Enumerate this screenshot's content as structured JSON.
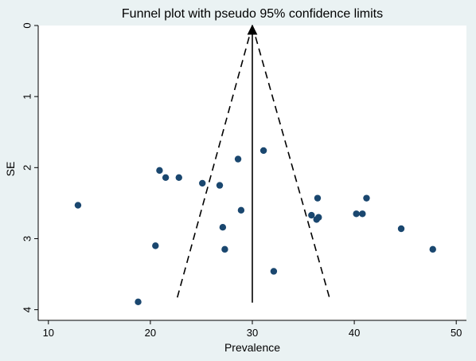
{
  "chart_data": {
    "type": "scatter",
    "title": "Funnel plot with pseudo 95% confidence limits",
    "xlabel": "Prevalence",
    "ylabel": "SE",
    "xlim": [
      9,
      51
    ],
    "ylim": [
      0,
      4.15
    ],
    "y_reversed": true,
    "xticks": [
      10,
      20,
      30,
      40,
      50
    ],
    "yticks": [
      0,
      1,
      2,
      3,
      4
    ],
    "grid": false,
    "legend": "none",
    "pooled_estimate": 30,
    "funnel_lines": [
      {
        "style": "dashed",
        "points": [
          [
            30,
            0
          ],
          [
            22.6,
            3.85
          ]
        ]
      },
      {
        "style": "dashed",
        "points": [
          [
            30,
            0
          ],
          [
            37.6,
            3.85
          ]
        ]
      },
      {
        "style": "solid-arrow",
        "points": [
          [
            30,
            3.9
          ],
          [
            30,
            0
          ]
        ]
      }
    ],
    "points": [
      {
        "x": 12.9,
        "y": 2.53
      },
      {
        "x": 18.8,
        "y": 3.89
      },
      {
        "x": 20.5,
        "y": 3.1
      },
      {
        "x": 20.9,
        "y": 2.04
      },
      {
        "x": 21.5,
        "y": 2.14
      },
      {
        "x": 22.8,
        "y": 2.14
      },
      {
        "x": 25.1,
        "y": 2.22
      },
      {
        "x": 26.8,
        "y": 2.25
      },
      {
        "x": 27.1,
        "y": 2.84
      },
      {
        "x": 27.3,
        "y": 3.15
      },
      {
        "x": 28.6,
        "y": 1.88
      },
      {
        "x": 28.9,
        "y": 2.6
      },
      {
        "x": 31.1,
        "y": 1.76
      },
      {
        "x": 32.1,
        "y": 3.46
      },
      {
        "x": 35.8,
        "y": 2.67
      },
      {
        "x": 36.3,
        "y": 2.73
      },
      {
        "x": 36.4,
        "y": 2.43
      },
      {
        "x": 36.5,
        "y": 2.7
      },
      {
        "x": 40.2,
        "y": 2.65
      },
      {
        "x": 40.8,
        "y": 2.65
      },
      {
        "x": 41.2,
        "y": 2.43
      },
      {
        "x": 44.6,
        "y": 2.86
      },
      {
        "x": 47.7,
        "y": 3.15
      }
    ],
    "colors": {
      "background": "#eaf2f3",
      "plot_area": "#ffffff",
      "marker": "#1a476f",
      "lines": "#000000"
    }
  }
}
